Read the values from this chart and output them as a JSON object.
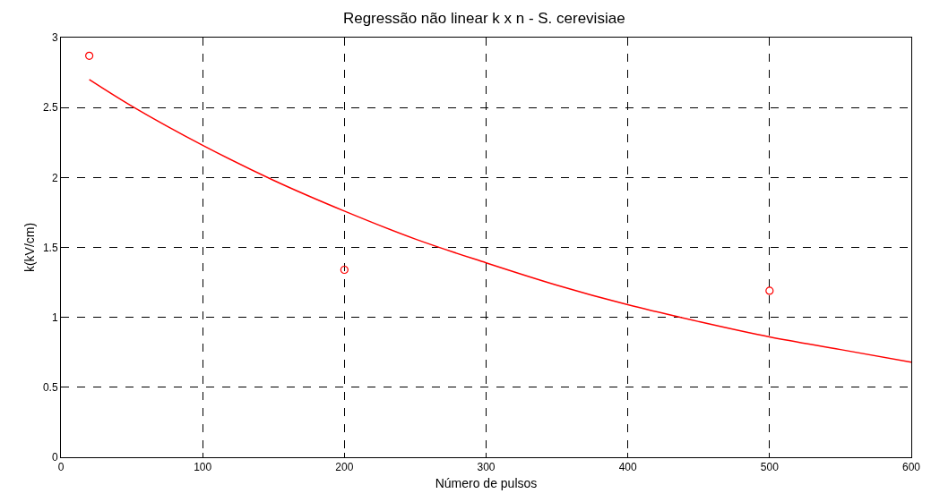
{
  "chart_data": {
    "type": "scatter",
    "title": "Regressão não linear k x n - S. cerevisiae",
    "xlabel": "Número de pulsos",
    "ylabel": "k(kV/cm)",
    "series": [
      {
        "color": "#ff0000",
        "marker": "circle",
        "x": [
          20,
          200,
          500
        ],
        "values": [
          2.87,
          1.34,
          1.19
        ]
      },
      {
        "type": "line",
        "color": "#ff0000",
        "line_style": "solid",
        "x": [
          20,
          50,
          100,
          150,
          200,
          250,
          300,
          350,
          400,
          450,
          500,
          550,
          600
        ],
        "values": [
          2.7,
          2.51,
          2.23,
          1.98,
          1.76,
          1.56,
          1.39,
          1.23,
          1.09,
          0.97,
          0.86,
          0.77,
          0.68
        ]
      }
    ],
    "xlim": [
      0,
      600
    ],
    "xticks": [
      0,
      100,
      200,
      300,
      400,
      500,
      600
    ],
    "ylim": [
      0,
      3
    ],
    "yticks": [
      0,
      0.5,
      1,
      1.5,
      2,
      2.5,
      3
    ],
    "grid": true
  }
}
